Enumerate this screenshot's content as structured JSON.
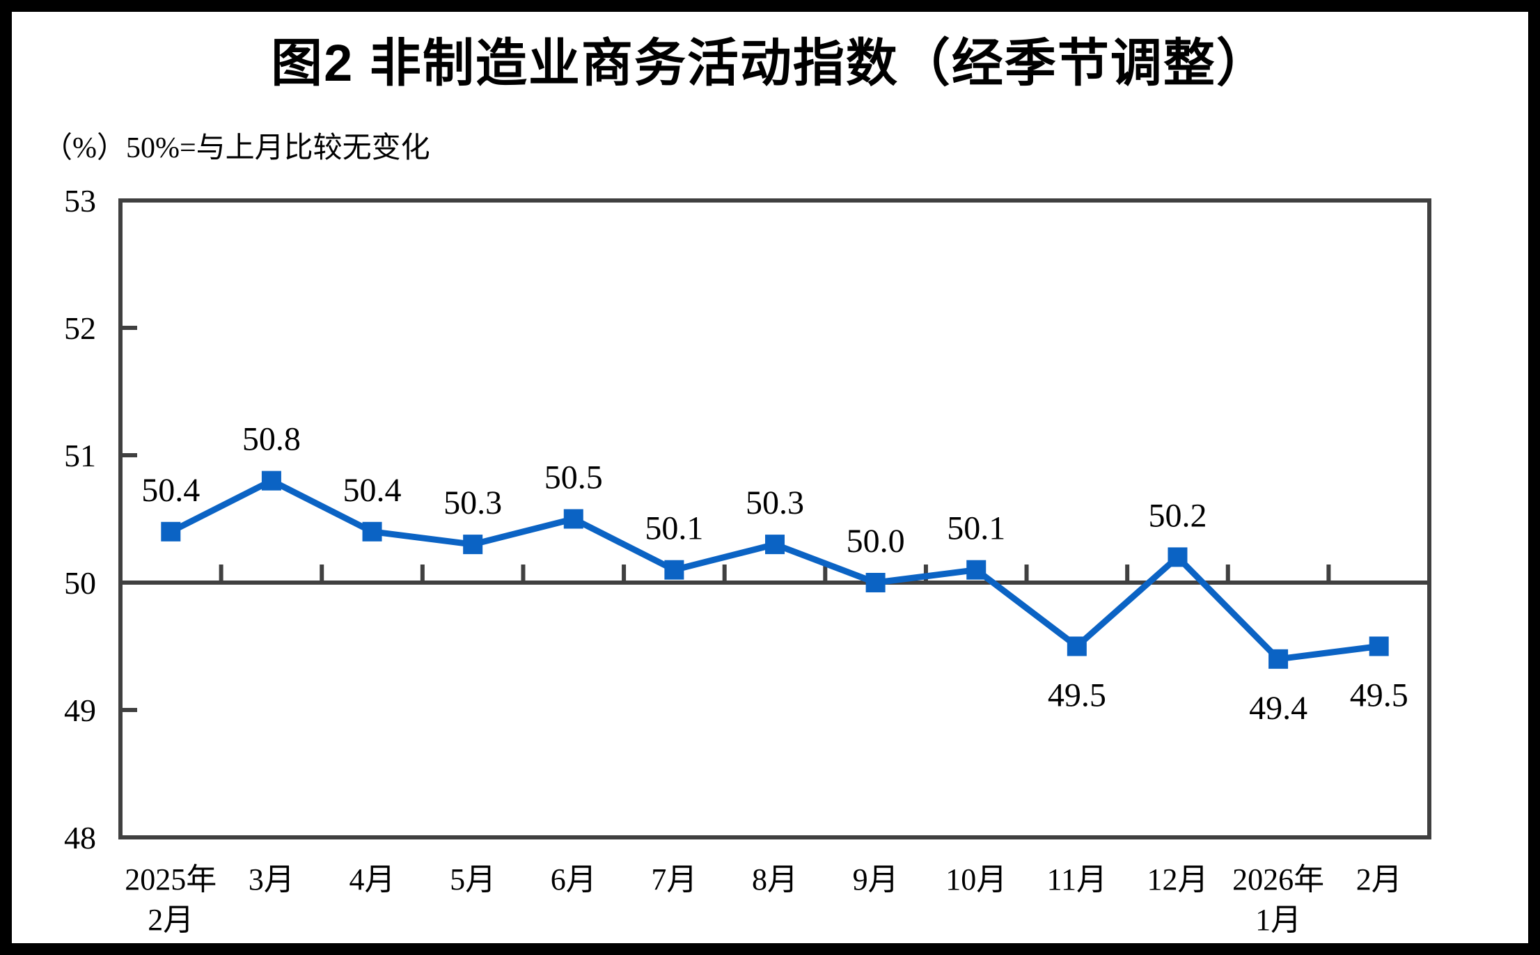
{
  "page": {
    "title": "图2 非制造业商务活动指数（经季节调整）",
    "unit_note": "（%）50%=与上月比较无变化"
  },
  "chart_data": {
    "type": "line",
    "title": "图2 非制造业商务活动指数（经季节调整）",
    "subtitle_unit_note": "（%）50%=与上月比较无变化",
    "categories": [
      [
        "2025年",
        "2月"
      ],
      [
        "3月"
      ],
      [
        "4月"
      ],
      [
        "5月"
      ],
      [
        "6月"
      ],
      [
        "7月"
      ],
      [
        "8月"
      ],
      [
        "9月"
      ],
      [
        "10月"
      ],
      [
        "11月"
      ],
      [
        "12月"
      ],
      [
        "2026年",
        "1月"
      ],
      [
        "2月"
      ]
    ],
    "series": [
      {
        "values": [
          50.4,
          50.8,
          50.4,
          50.3,
          50.5,
          50.1,
          50.3,
          50.0,
          50.1,
          49.5,
          50.2,
          49.4,
          49.5
        ]
      }
    ],
    "data_labels": [
      "50.4",
      "50.8",
      "50.4",
      "50.3",
      "50.5",
      "50.1",
      "50.3",
      "50.0",
      "50.1",
      "49.5",
      "50.2",
      "49.4",
      "49.5"
    ],
    "labels_below_indices": [
      9,
      11,
      12
    ],
    "ylim": [
      48,
      53
    ],
    "yticks": [
      48,
      49,
      50,
      51,
      52,
      53
    ],
    "reference_line_y": 50,
    "xlabel": "",
    "ylabel": "（%）",
    "legend": "none",
    "grid": "off",
    "marker": "square",
    "colors": {
      "line": "#0B63C4",
      "marker": "#0B63C4",
      "axis_frame": "#404040",
      "reference_line": "#404040",
      "text": "#000000",
      "outer_border": "#000000"
    }
  }
}
